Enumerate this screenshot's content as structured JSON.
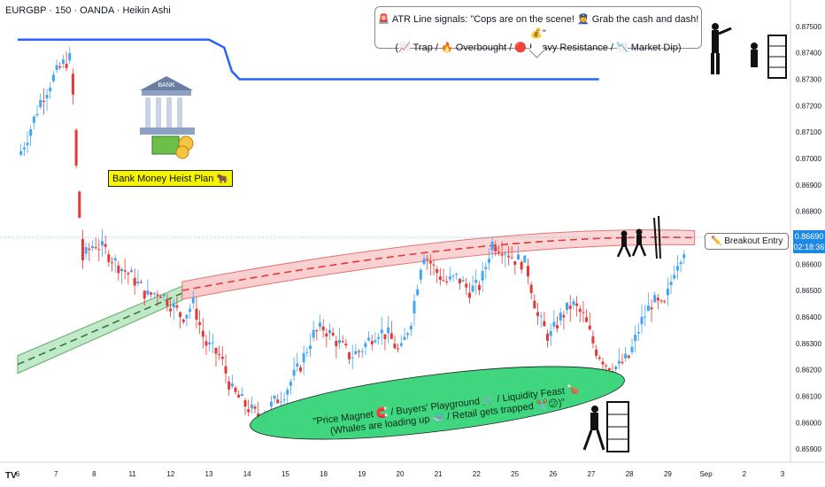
{
  "header": {
    "title": "EURGBP · 150 · OANDA · Heikin Ashi"
  },
  "price_tag": {
    "price": "0.86690",
    "countdown": "02:18:36"
  },
  "callout": {
    "line1": "🚨 ATR Line signals: \"Cops are on the scene! 👮 Grab the cash and dash! 💰\"",
    "line2": "(📈 Trap / 🔥 Overbought / 🔴 Heavy Resistance / 📉 Market Dip)"
  },
  "bank": {
    "sign": "BANK"
  },
  "heist_label": "Bank Money Heist Plan 🐂",
  "entry_label": "✏️ Breakout Entry",
  "zone_text": {
    "line1": "\"Price Magnet 🧲 / Buyers' Playground 🛒 / Liquidity Feast 🍗",
    "line2": "(Whales are loading up 🐳 / Retail gets trapped ✂️😕)\""
  },
  "tv_logo": "TV",
  "colors": {
    "bull": "#42a5f5",
    "bear": "#e53935",
    "atr_line": "#2962ff",
    "resistance": "#e53935",
    "support_band": "#43a047",
    "zone": "#36d47a"
  },
  "chart_data": {
    "type": "candlestick",
    "y_range": [
      0.8585,
      0.876
    ],
    "y_ticks": [
      "0.87500",
      "0.87400",
      "0.87300",
      "0.87200",
      "0.87100",
      "0.87000",
      "0.86900",
      "0.86800",
      "0.86700",
      "0.86600",
      "0.86500",
      "0.86400",
      "0.86300",
      "0.86200",
      "0.86100",
      "0.86000",
      "0.85900"
    ],
    "x_labels": [
      {
        "label": "6",
        "day": 6
      },
      {
        "label": "7",
        "day": 7
      },
      {
        "label": "8",
        "day": 8
      },
      {
        "label": "11",
        "day": 11
      },
      {
        "label": "12",
        "day": 12
      },
      {
        "label": "13",
        "day": 13
      },
      {
        "label": "14",
        "day": 14
      },
      {
        "label": "15",
        "day": 15
      },
      {
        "label": "18",
        "day": 18
      },
      {
        "label": "19",
        "day": 19
      },
      {
        "label": "20",
        "day": 20
      },
      {
        "label": "21",
        "day": 21
      },
      {
        "label": "22",
        "day": 22
      },
      {
        "label": "25",
        "day": 25
      },
      {
        "label": "26",
        "day": 26
      },
      {
        "label": "27",
        "day": 27
      },
      {
        "label": "28",
        "day": 28
      },
      {
        "label": "29",
        "day": 29
      },
      {
        "label": "Sep",
        "day": 30
      },
      {
        "label": "2",
        "day": 31
      },
      {
        "label": "3",
        "day": 32
      }
    ],
    "price_path": [
      [
        0,
        0.87
      ],
      [
        0.3,
        0.871
      ],
      [
        0.6,
        0.8722
      ],
      [
        0.9,
        0.873
      ],
      [
        1.2,
        0.8736
      ],
      [
        1.4,
        0.8738
      ],
      [
        1.55,
        0.869
      ],
      [
        1.7,
        0.8662
      ],
      [
        2.0,
        0.8668
      ],
      [
        2.3,
        0.8665
      ],
      [
        2.6,
        0.866
      ],
      [
        3.0,
        0.8655
      ],
      [
        3.4,
        0.8648
      ],
      [
        3.7,
        0.865
      ],
      [
        4.0,
        0.8645
      ],
      [
        4.3,
        0.864
      ],
      [
        4.6,
        0.8645
      ],
      [
        4.9,
        0.863
      ],
      [
        5.3,
        0.8625
      ],
      [
        5.6,
        0.8612
      ],
      [
        6.0,
        0.8606
      ],
      [
        6.3,
        0.8602
      ],
      [
        6.6,
        0.8606
      ],
      [
        7.0,
        0.8612
      ],
      [
        7.4,
        0.8622
      ],
      [
        7.7,
        0.8633
      ],
      [
        8.0,
        0.8636
      ],
      [
        8.4,
        0.863
      ],
      [
        8.7,
        0.8625
      ],
      [
        9.0,
        0.8628
      ],
      [
        9.4,
        0.8635
      ],
      [
        9.7,
        0.8633
      ],
      [
        10.0,
        0.8626
      ],
      [
        10.3,
        0.864
      ],
      [
        10.6,
        0.8665
      ],
      [
        10.9,
        0.8658
      ],
      [
        11.2,
        0.8653
      ],
      [
        11.5,
        0.8655
      ],
      [
        11.8,
        0.865
      ],
      [
        12.1,
        0.8652
      ],
      [
        12.4,
        0.8668
      ],
      [
        12.7,
        0.8666
      ],
      [
        13.0,
        0.8662
      ],
      [
        13.3,
        0.866
      ],
      [
        13.6,
        0.864
      ],
      [
        13.9,
        0.8632
      ],
      [
        14.2,
        0.864
      ],
      [
        14.5,
        0.8645
      ],
      [
        14.8,
        0.864
      ],
      [
        15.1,
        0.8628
      ],
      [
        15.4,
        0.8622
      ],
      [
        15.7,
        0.8621
      ],
      [
        16.0,
        0.8625
      ],
      [
        16.3,
        0.8638
      ],
      [
        16.6,
        0.8646
      ],
      [
        16.9,
        0.8643
      ],
      [
        17.2,
        0.866
      ],
      [
        17.5,
        0.8668
      ]
    ],
    "atr_line": [
      [
        0,
        0.8745
      ],
      [
        5.0,
        0.8745
      ],
      [
        5.4,
        0.8742
      ],
      [
        5.6,
        0.8733
      ],
      [
        5.8,
        0.873
      ],
      [
        15.2,
        0.873
      ]
    ],
    "resistance_band": {
      "from_x": 4.3,
      "to_x": 17.7,
      "y_start": 0.865,
      "y_end": 0.867,
      "current": 0.8669
    },
    "support_band": {
      "from_x": 0,
      "to_x": 4.3,
      "y_start": 0.8622,
      "y_end": 0.8649
    }
  }
}
